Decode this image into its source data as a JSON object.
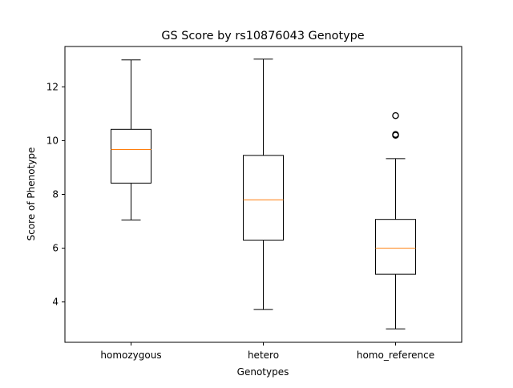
{
  "chart_data": {
    "type": "box",
    "title": "GS Score by rs10876043 Genotype",
    "xlabel": "Genotypes",
    "ylabel": "Score of Phenotype",
    "ylim": [
      2.5,
      13.5
    ],
    "yticks": [
      4,
      6,
      8,
      10,
      12
    ],
    "grid": false,
    "categories": [
      "homozygous",
      "hetero",
      "homo_reference"
    ],
    "boxes": [
      {
        "category": "homozygous",
        "whisker_low": 7.05,
        "q1": 8.42,
        "median": 9.67,
        "q3": 10.42,
        "whisker_high": 13.0,
        "outliers": []
      },
      {
        "category": "hetero",
        "whisker_low": 3.72,
        "q1": 6.3,
        "median": 7.8,
        "q3": 9.45,
        "whisker_high": 13.03,
        "outliers": []
      },
      {
        "category": "homo_reference",
        "whisker_low": 3.0,
        "q1": 5.03,
        "median": 6.0,
        "q3": 7.07,
        "whisker_high": 9.33,
        "outliers": [
          10.93,
          10.2,
          10.23
        ]
      }
    ],
    "colors": {
      "box": "#000000",
      "median": "#ff7f0e",
      "axes": "#000000",
      "background": "#ffffff"
    }
  }
}
